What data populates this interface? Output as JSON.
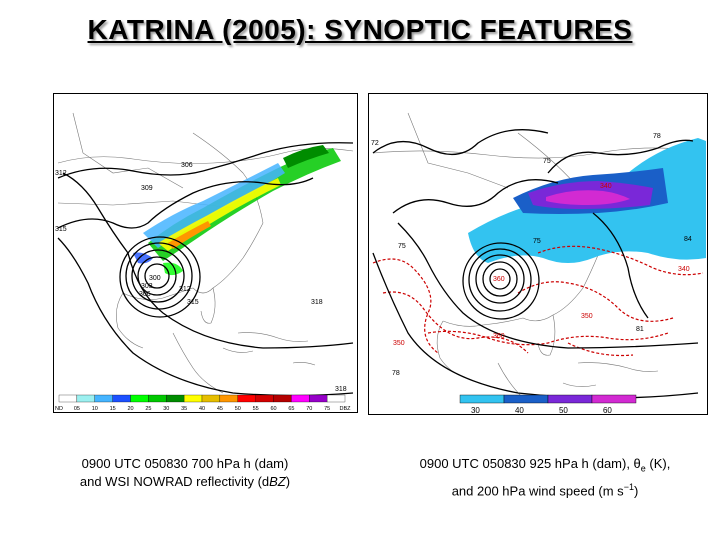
{
  "title": "KATRINA (2005): SYNOPTIC FEATURES",
  "left_panel": {
    "caption_line1": "0900 UTC 050830 700 hPa h (dam)",
    "caption_line2_pre": "and WSI NOWRAD reflectivity (d",
    "caption_line2_it": "BZ",
    "caption_line2_post": ")",
    "contour_labels": [
      "306",
      "312",
      "309",
      "315",
      "300",
      "303",
      "306",
      "312",
      "315",
      "318",
      "318"
    ],
    "colorbar_labels": [
      "ND",
      "05",
      "10",
      "15",
      "20",
      "25",
      "30",
      "35",
      "40",
      "45",
      "50",
      "55",
      "60",
      "65",
      "70",
      "75",
      "DBZ"
    ],
    "colorbar_colors": [
      "#ffffff",
      "#9cf0f0",
      "#45b4ff",
      "#1c50ff",
      "#00ff00",
      "#00c800",
      "#008c00",
      "#ffff00",
      "#e6be00",
      "#ff9600",
      "#ff0000",
      "#d20000",
      "#b40000",
      "#ff00ff",
      "#9600c8",
      "#ffffff"
    ]
  },
  "right_panel": {
    "caption_line1_pre": "0900 UTC 050830 925 hPa h (dam), θ",
    "caption_line1_sub": "e",
    "caption_line1_post": " (K),",
    "caption_line2_pre": "and 200 hPa wind speed (m s",
    "caption_line2_sup": "−1",
    "caption_line2_post": ")",
    "contour_labels": [
      "72",
      "75",
      "78",
      "84",
      "75",
      "75",
      "81",
      "78"
    ],
    "theta_labels": [
      "340",
      "360",
      "350",
      "360",
      "350",
      "340"
    ],
    "colorbar_labels": [
      "30",
      "40",
      "50",
      "60"
    ],
    "colorbar_colors": [
      "#33c3f0",
      "#1a5fc8",
      "#7a28d8",
      "#d22ad2"
    ]
  }
}
